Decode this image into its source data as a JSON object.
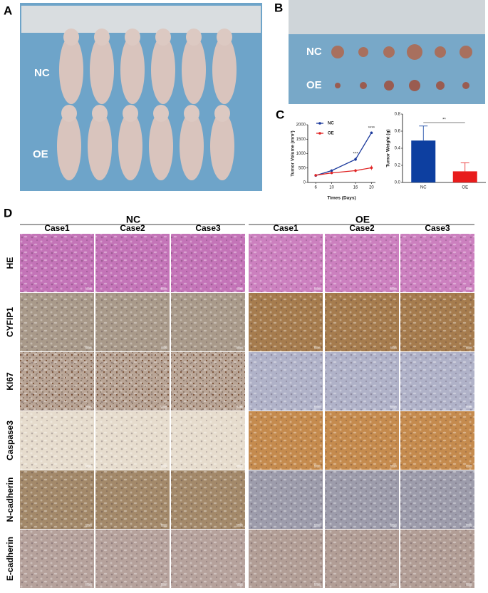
{
  "panel_labels": [
    "A",
    "B",
    "C",
    "D"
  ],
  "photo_a_labels": [
    "NC",
    "OE"
  ],
  "photo_b_labels": [
    "NC",
    "OE"
  ],
  "chart_data": [
    {
      "type": "line",
      "y_label": "Tumor Volume (mm³)",
      "x_label": "Times (Days)",
      "x": [
        6,
        10,
        16,
        20
      ],
      "xlim": [
        4,
        21
      ],
      "xticks": [
        6,
        10,
        16,
        20
      ],
      "ylim": [
        0,
        2000
      ],
      "yticks": [
        0,
        500,
        1000,
        1500,
        2000
      ],
      "series": [
        {
          "name": "NC",
          "color": "#1c3a9c",
          "values": [
            240,
            410,
            800,
            1720
          ],
          "errors": [
            30,
            40,
            60,
            40
          ]
        },
        {
          "name": "OE",
          "color": "#e02424",
          "values": [
            250,
            330,
            410,
            510
          ],
          "errors": [
            30,
            40,
            60,
            80
          ]
        }
      ],
      "annotations": [
        "***",
        "****"
      ]
    },
    {
      "type": "bar",
      "y_label": "Tumor Weight (g)",
      "categories": [
        "NC",
        "OE"
      ],
      "values": [
        0.49,
        0.13
      ],
      "errors": [
        0.17,
        0.1
      ],
      "colors": [
        "#0d3fa0",
        "#e81c1c"
      ],
      "ylim": [
        0,
        0.8
      ],
      "yticks": [
        {
          "value": 0,
          "label": "0.0"
        },
        0.2,
        0.4,
        0.6,
        0.8
      ],
      "annotations": [
        "**"
      ]
    }
  ],
  "histology": {
    "groups": [
      "NC",
      "OE"
    ],
    "cases": [
      "Case1",
      "Case2",
      "Case3",
      "Case1",
      "Case2",
      "Case3"
    ],
    "stains": [
      "HE",
      "CYFIP1",
      "KI67",
      "Caspase3",
      "N-cadherin",
      "E-cadherin"
    ],
    "scale_bar": "100μm"
  }
}
